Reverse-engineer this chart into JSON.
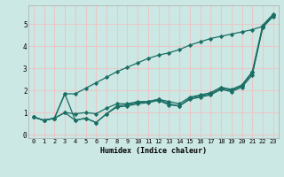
{
  "xlabel": "Humidex (Indice chaleur)",
  "bg_color": "#cce8e4",
  "line_color": "#1a6e64",
  "grid_color": "#e8c8c8",
  "xlim": [
    -0.5,
    23.5
  ],
  "ylim": [
    -0.15,
    5.85
  ],
  "xticks": [
    0,
    1,
    2,
    3,
    4,
    5,
    6,
    7,
    8,
    9,
    10,
    11,
    12,
    13,
    14,
    15,
    16,
    17,
    18,
    19,
    20,
    21,
    22,
    23
  ],
  "yticks": [
    0,
    1,
    2,
    3,
    4,
    5
  ],
  "series": [
    [
      0.8,
      0.65,
      0.75,
      1.85,
      0.65,
      0.75,
      0.55,
      0.95,
      1.3,
      1.35,
      1.45,
      1.5,
      1.6,
      1.4,
      1.3,
      1.65,
      1.75,
      1.85,
      2.1,
      2.0,
      2.2,
      2.8,
      4.85,
      5.4
    ],
    [
      0.8,
      0.65,
      0.75,
      1.85,
      1.85,
      2.1,
      2.35,
      2.6,
      2.85,
      3.05,
      3.25,
      3.45,
      3.6,
      3.7,
      3.85,
      4.05,
      4.2,
      4.35,
      4.45,
      4.55,
      4.65,
      4.75,
      4.9,
      5.4
    ],
    [
      0.8,
      0.65,
      0.75,
      1.0,
      0.65,
      0.75,
      0.55,
      0.95,
      1.25,
      1.3,
      1.4,
      1.45,
      1.55,
      1.35,
      1.3,
      1.6,
      1.7,
      1.8,
      2.05,
      1.95,
      2.15,
      2.7,
      4.85,
      5.35
    ],
    [
      0.8,
      0.65,
      0.75,
      1.0,
      0.95,
      1.0,
      0.95,
      1.2,
      1.4,
      1.4,
      1.5,
      1.5,
      1.6,
      1.5,
      1.4,
      1.7,
      1.8,
      1.9,
      2.15,
      2.05,
      2.25,
      2.85,
      4.95,
      5.45
    ]
  ]
}
